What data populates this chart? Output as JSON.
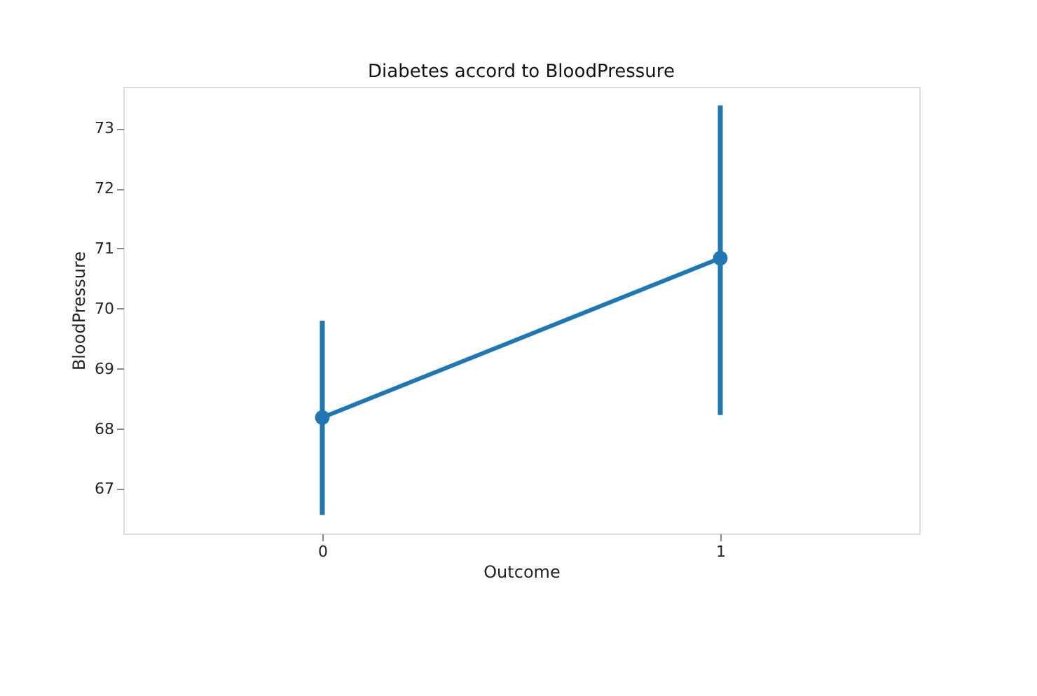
{
  "chart_data": {
    "type": "line",
    "title": "Diabetes accord to BloodPressure",
    "xlabel": "Outcome",
    "ylabel": "BloodPressure",
    "categories": [
      "0",
      "1"
    ],
    "series": [
      {
        "color": "#1f77b4",
        "values": [
          68.19,
          70.84
        ],
        "errors": [
          [
            66.57,
            69.8
          ],
          [
            68.23,
            73.38
          ]
        ]
      }
    ],
    "ylim": [
      66.26,
      73.69
    ],
    "yticks": [
      67,
      68,
      69,
      70,
      71,
      72,
      73
    ],
    "grid": false,
    "marker": "circle",
    "line_style": "solid"
  }
}
